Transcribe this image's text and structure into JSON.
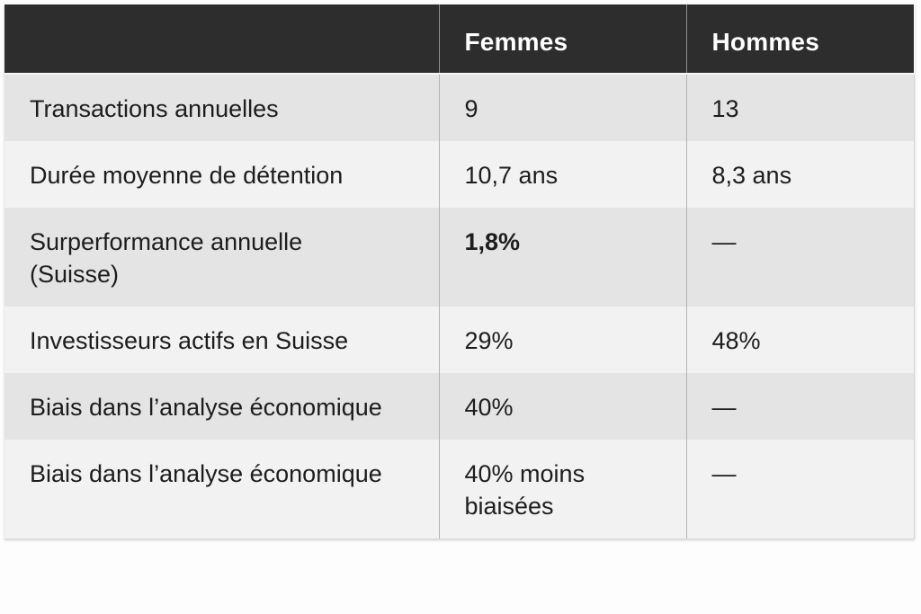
{
  "table": {
    "columns": [
      "",
      "Femmes",
      "Hommes"
    ],
    "rows": [
      {
        "label": "Transactions annuelles",
        "femmes": "9",
        "hommes": "13",
        "bold": false
      },
      {
        "label": "Durée moyenne de détention",
        "femmes": "10,7 ans",
        "hommes": "8,3 ans",
        "bold": false
      },
      {
        "label": "Surperformance annuelle (Suisse)",
        "femmes": "1,8%",
        "hommes": "—",
        "bold": true
      },
      {
        "label": "Investisseurs actifs en Suisse",
        "femmes": "29%",
        "hommes": "48%",
        "bold": false
      },
      {
        "label": "Biais dans l’analyse économique",
        "femmes": "40%",
        "hommes": "—",
        "bold": false
      },
      {
        "label": "Biais dans l’analyse économique",
        "femmes": "40% moins biaisées",
        "hommes": "—",
        "bold": false
      }
    ],
    "colors": {
      "page_bg": "#fdfdfd",
      "header_bg": "#2d2d2d",
      "header_text": "#ffffff",
      "row_dark": "#e4e4e4",
      "row_light": "#f2f2f2",
      "text": "#1d1d1d",
      "divider_header": "#8f8f8f",
      "divider_body": "#b3b3b3"
    }
  },
  "chart_data": {
    "type": "table",
    "title": "",
    "columns": [
      "",
      "Femmes",
      "Hommes"
    ],
    "rows": [
      [
        "Transactions annuelles",
        "9",
        "13"
      ],
      [
        "Durée moyenne de détention",
        "10,7 ans",
        "8,3 ans"
      ],
      [
        "Surperformance annuelle (Suisse)",
        "1,8%",
        "—"
      ],
      [
        "Investisseurs actifs en Suisse",
        "29%",
        "48%"
      ],
      [
        "Biais dans l’analyse économique",
        "40%",
        "—"
      ],
      [
        "Biais dans l’analyse économique",
        "40% moins biaisées",
        "—"
      ]
    ],
    "notes": "Comparison table of investing behaviour, women vs men; em dash means no value shown"
  }
}
